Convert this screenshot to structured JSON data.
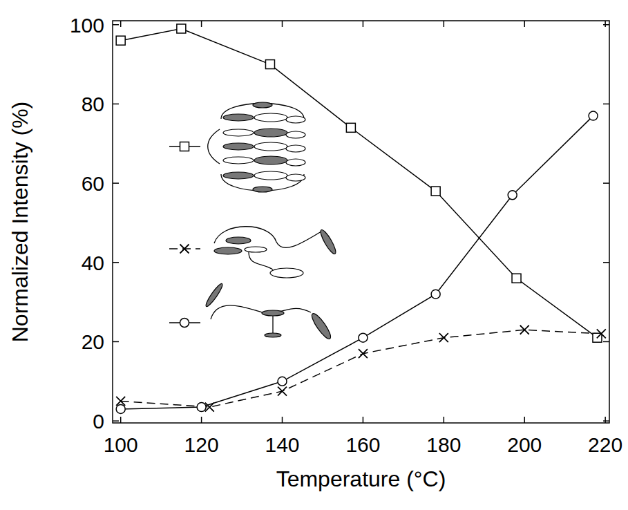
{
  "chart_data": {
    "type": "line",
    "x_label": "Temperature (°C)",
    "y_label": "Normalized Intensity (%)",
    "xlim": [
      98,
      221
    ],
    "xticks": [
      100,
      120,
      140,
      160,
      180,
      200,
      220
    ],
    "ylim": [
      -0.5,
      101
    ],
    "yticks": [
      0,
      20,
      40,
      60,
      80,
      100
    ],
    "grid": false,
    "legend": "left",
    "series": [
      {
        "x": [
          100,
          115,
          137,
          157,
          178,
          198,
          218
        ],
        "values": [
          96,
          99,
          90,
          74,
          58,
          36,
          21
        ],
        "color": "#000000",
        "marker": "square",
        "line_style": "solid"
      },
      {
        "x": [
          100,
          122,
          140,
          160,
          180,
          200,
          219
        ],
        "values": [
          5,
          3.5,
          7.5,
          17,
          21,
          23,
          22
        ],
        "color": "#000000",
        "marker": "cross",
        "line_style": "dashed"
      },
      {
        "x": [
          100,
          120,
          140,
          160,
          178,
          197,
          217
        ],
        "values": [
          3,
          3.5,
          10,
          21,
          32,
          57,
          77
        ],
        "color": "#000000",
        "marker": "circle",
        "line_style": "solid"
      }
    ]
  }
}
